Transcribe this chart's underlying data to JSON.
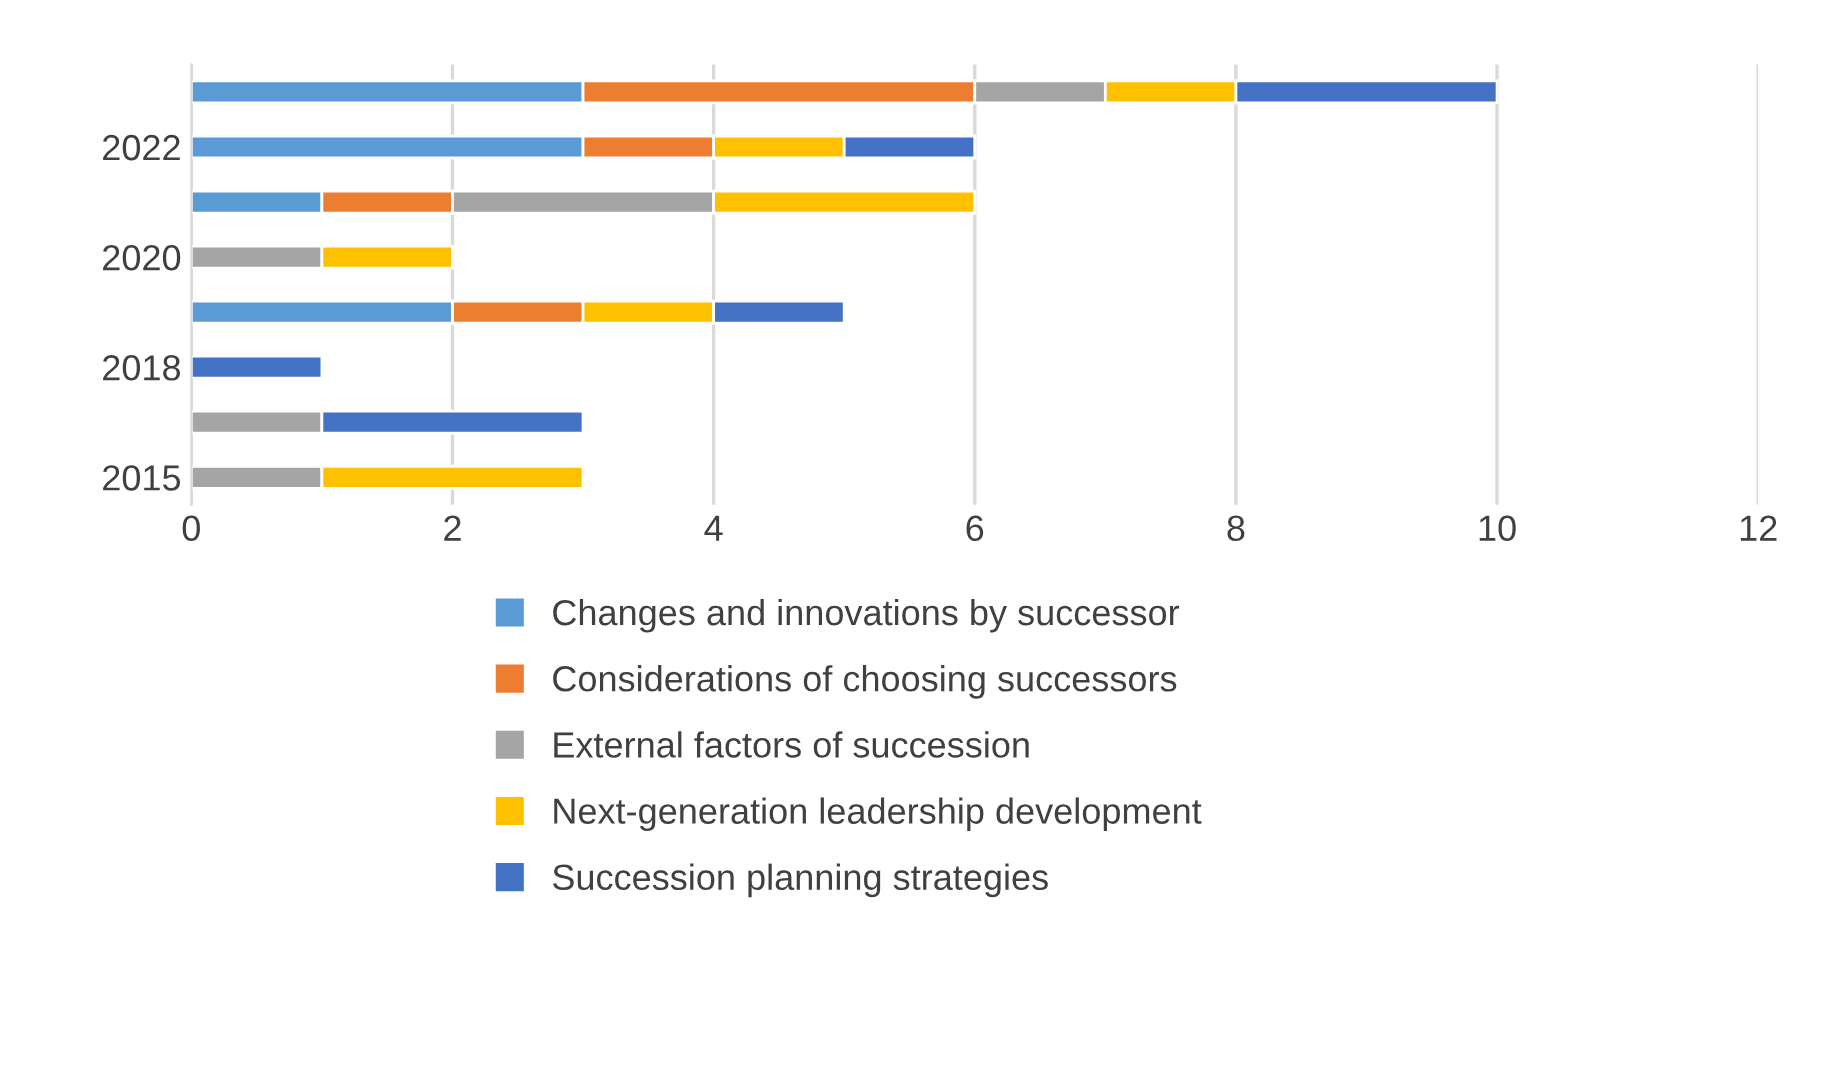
{
  "chart_data": {
    "type": "bar",
    "orientation": "horizontal",
    "stacked": true,
    "categories": [
      null,
      "2022",
      null,
      "2020",
      null,
      "2018",
      null,
      "2015"
    ],
    "series": [
      {
        "name": "Changes and innovations by successor",
        "color": "#5b9bd5",
        "values": [
          3,
          3,
          1,
          null,
          2,
          null,
          null,
          null
        ]
      },
      {
        "name": "Considerations of choosing successors",
        "color": "#ed7d31",
        "values": [
          3,
          1,
          1,
          null,
          1,
          null,
          null,
          null
        ]
      },
      {
        "name": "External factors of succession",
        "color": "#a5a5a5",
        "values": [
          1,
          null,
          2,
          1,
          null,
          null,
          1,
          1
        ]
      },
      {
        "name": "Next-generation leadership development",
        "color": "#ffc000",
        "values": [
          1,
          1,
          2,
          1,
          1,
          null,
          null,
          2
        ]
      },
      {
        "name": "Succession planning strategies",
        "color": "#4472c4",
        "values": [
          2,
          1,
          null,
          null,
          1,
          1,
          2,
          null
        ]
      }
    ],
    "xlim": [
      0,
      12
    ],
    "xticks": [
      0,
      2,
      4,
      6,
      8,
      10,
      12
    ],
    "grid": "x",
    "legend": "bottom"
  }
}
